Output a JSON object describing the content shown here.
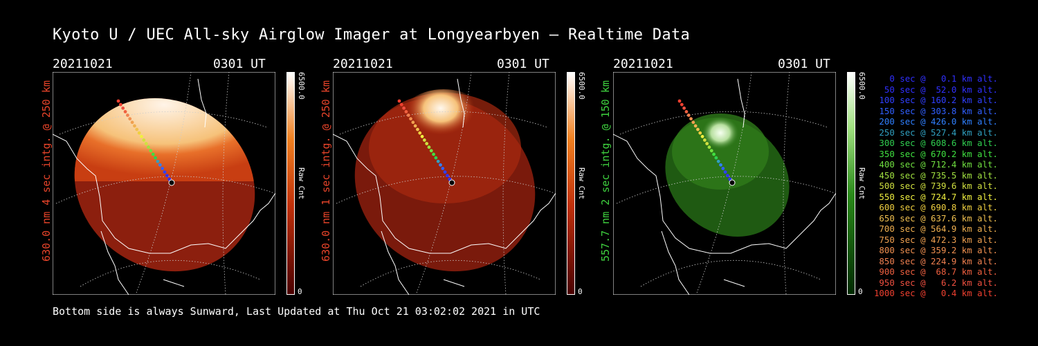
{
  "title": "Kyoto U / UEC All-sky Airglow Imager at Longyearbyen — Realtime Data",
  "footer": "Bottom side is always Sunward, Last Updated at Thu Oct 21 03:02:02 2021 in UTC",
  "panels": [
    {
      "date": "20211021",
      "time": "0301 UT",
      "side_label": "630.0 nm 4 sec intg. @ 250 km",
      "side_color": "#e8442a",
      "colorbar_max": "6500.0",
      "colorbar_min": "0",
      "colorbar_label": "Raw Cnt",
      "palette": "red"
    },
    {
      "date": "20211021",
      "time": "0301 UT",
      "side_label": "630.0 nm 1 sec intg. @ 250 km",
      "side_color": "#e8442a",
      "colorbar_max": "6500.0",
      "colorbar_min": "0",
      "colorbar_label": "Raw Cnt",
      "palette": "red"
    },
    {
      "date": "20211021",
      "time": "0301 UT",
      "side_label": "557.7 nm 2 sec intg. @ 150 km",
      "side_color": "#3fd23f",
      "colorbar_max": "6500.0",
      "colorbar_min": "0",
      "colorbar_label": "Raw Cnt",
      "palette": "green"
    }
  ],
  "trajectory_legend": [
    {
      "text": "0 sec @   0.1 km alt.",
      "color": "#3030ff"
    },
    {
      "text": "50 sec @  52.0 km alt.",
      "color": "#3030ff"
    },
    {
      "text": "100 sec @ 160.2 km alt.",
      "color": "#3040ff"
    },
    {
      "text": "150 sec @ 303.8 km alt.",
      "color": "#3060ff"
    },
    {
      "text": "200 sec @ 426.0 km alt.",
      "color": "#2f80ff"
    },
    {
      "text": "250 sec @ 527.4 km alt.",
      "color": "#30a0c0"
    },
    {
      "text": "300 sec @ 608.6 km alt.",
      "color": "#30d050"
    },
    {
      "text": "350 sec @ 670.2 km alt.",
      "color": "#40e040"
    },
    {
      "text": "400 sec @ 712.4 km alt.",
      "color": "#70e040"
    },
    {
      "text": "450 sec @ 735.5 km alt.",
      "color": "#a0e040"
    },
    {
      "text": "500 sec @ 739.6 km alt.",
      "color": "#d0e040"
    },
    {
      "text": "550 sec @ 724.7 km alt.",
      "color": "#f0f040"
    },
    {
      "text": "600 sec @ 690.8 km alt.",
      "color": "#f0d040"
    },
    {
      "text": "650 sec @ 637.6 km alt.",
      "color": "#f0c050"
    },
    {
      "text": "700 sec @ 564.9 km alt.",
      "color": "#f0b050"
    },
    {
      "text": "750 sec @ 472.3 km alt.",
      "color": "#f0a050"
    },
    {
      "text": "800 sec @ 359.2 km alt.",
      "color": "#f09050"
    },
    {
      "text": "850 sec @ 224.9 km alt.",
      "color": "#f08050"
    },
    {
      "text": "900 sec @  68.7 km alt.",
      "color": "#f06040"
    },
    {
      "text": "950 sec @   6.2 km alt.",
      "color": "#f05040"
    },
    {
      "text": "1000 sec @   0.4 km alt.",
      "color": "#f04030"
    }
  ]
}
